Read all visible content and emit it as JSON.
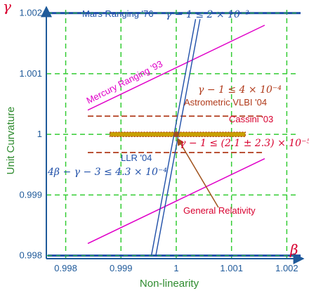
{
  "chart_data": {
    "type": "line",
    "xlabel": "Non-linearity",
    "ylabel": "Unit Curvature",
    "x_symbol": "β",
    "y_symbol": "γ",
    "xlim": [
      0.99765,
      1.0023
    ],
    "ylim": [
      0.99795,
      1.0021
    ],
    "x_ticks": [
      0.998,
      0.999,
      1,
      1.001,
      1.002
    ],
    "x_tick_labels": [
      "0.998",
      "0.999",
      "1",
      "1.001",
      "1.002"
    ],
    "y_ticks": [
      0.998,
      0.999,
      1,
      1.001,
      1.002
    ],
    "y_tick_labels": [
      "0.998",
      "0.999",
      "1",
      "1.001",
      "1.002"
    ],
    "grid": true,
    "colors": {
      "axis": "#1f5a9a",
      "grid": "#33cc33",
      "mars": "#1f4fa8",
      "mercury": "#e000c8",
      "vlbi": "#b03a1a",
      "cassini": "#c8a000",
      "cassini_hatch": "#b03a1a",
      "llr": "#1f4fa8",
      "gr": "#a0521d",
      "symbol": "#d8002f"
    },
    "series": [
      {
        "name": "Mars Ranging '76",
        "kind": "hline",
        "values": [
          0.998,
          1.002
        ]
      },
      {
        "name": "Mercury Ranging '93",
        "kind": "band",
        "lines": [
          [
            [
              0.9984,
              1.0004
            ],
            [
              1.0016,
              1.0018
            ]
          ],
          [
            [
              0.9984,
              0.9982
            ],
            [
              1.0016,
              0.9996
            ]
          ]
        ]
      },
      {
        "name": "Astrometric VLBI '04",
        "kind": "hband",
        "range": [
          0.9984,
          1.0016
        ],
        "values": [
          0.9997,
          1.0003
        ]
      },
      {
        "name": "Cassini '03",
        "kind": "hband",
        "range": [
          0.9988,
          1.00125
        ],
        "values": [
          0.99998,
          1.00002
        ]
      },
      {
        "name": "LLR '04",
        "kind": "band",
        "lines": [
          [
            [
              0.99955,
              0.998
            ],
            [
              1.00035,
              1.0019
            ]
          ],
          [
            [
              0.99963,
              0.998
            ],
            [
              1.00043,
              1.0019
            ]
          ]
        ]
      },
      {
        "name": "General Relativity",
        "kind": "point",
        "x": 1,
        "y": 1
      }
    ],
    "annotations": [
      {
        "text": "Mars Ranging '76",
        "color": "#1f4fa8"
      },
      {
        "text": "γ − 1 ≤ 2 × 10⁻³",
        "color": "#1f4fa8"
      },
      {
        "text": "Mercury Ranging '93",
        "color": "#e000c8"
      },
      {
        "text": "γ − 1 ≤ 4 × 10⁻⁴",
        "color": "#b03a1a"
      },
      {
        "text": "Astrometric VLBI '04",
        "color": "#b03a1a"
      },
      {
        "text": "Cassini '03",
        "color": "#d8002f"
      },
      {
        "text": "γ − 1 ≤ (2.1 ± 2.3) × 10⁻⁵",
        "color": "#d8002f"
      },
      {
        "text": "LLR '04",
        "color": "#1f4fa8"
      },
      {
        "text": "4β − γ − 3 ≤ 4.3 × 10⁻⁴",
        "color": "#1f4fa8"
      },
      {
        "text": "General Relativity",
        "color": "#d8002f"
      }
    ]
  }
}
